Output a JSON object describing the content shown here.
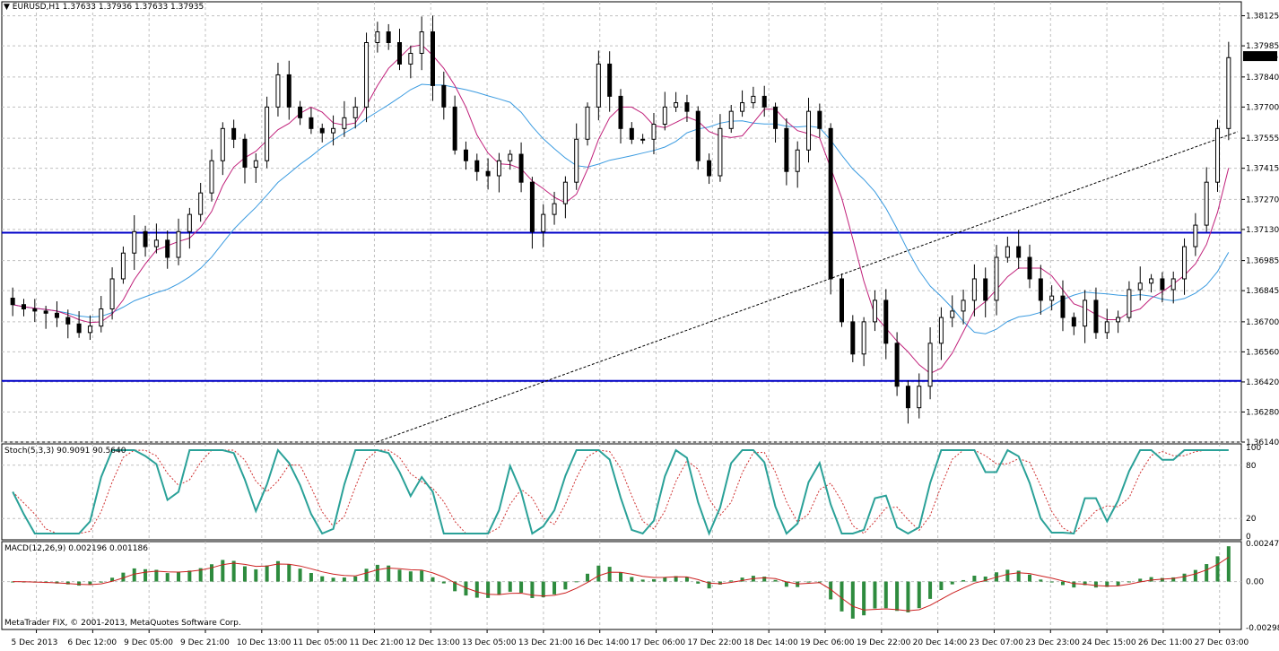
{
  "header": {
    "symbol": "EURUSD,H1",
    "ohlc": "1.37633 1.37936 1.37633 1.37935"
  },
  "copyright": "MetaTrader FIX, © 2001-2013, MetaQuotes Software Corp.",
  "colors": {
    "grid": "#c0c0c0",
    "axis": "#000000",
    "bull": "#000000",
    "bear": "#000000",
    "ma_fast": "#c0207a",
    "ma_slow": "#3b9be0",
    "hline": "#0000c8",
    "stoch_main": "#2aa198",
    "stoch_signal": "#d03030",
    "macd_hist": "#2e8b3e",
    "macd_signal": "#cc2020",
    "price_tag_bg": "#000000",
    "price_tag_fg": "#ffffff"
  },
  "chart_data": {
    "type": "candlestick",
    "price_axis": {
      "ticks": [
        "1.38125",
        "1.37985",
        "1.37840",
        "1.37700",
        "1.37555",
        "1.37415",
        "1.37270",
        "1.37130",
        "1.36985",
        "1.36845",
        "1.36700",
        "1.36560",
        "1.36420",
        "1.36280",
        "1.36140"
      ],
      "range": [
        1.3614,
        1.3819
      ],
      "current": "1.37935"
    },
    "time_axis": {
      "labels": [
        "5 Dec 2013",
        "6 Dec 12:00",
        "9 Dec 05:00",
        "9 Dec 21:00",
        "10 Dec 13:00",
        "11 Dec 05:00",
        "11 Dec 21:00",
        "12 Dec 13:00",
        "13 Dec 05:00",
        "13 Dec 21:00",
        "16 Dec 14:00",
        "17 Dec 06:00",
        "17 Dec 22:00",
        "18 Dec 14:00",
        "19 Dec 06:00",
        "19 Dec 22:00",
        "20 Dec 14:00",
        "23 Dec 07:00",
        "23 Dec 23:00",
        "24 Dec 15:00",
        "26 Dec 11:00",
        "27 Dec 03:00"
      ]
    },
    "horizontal_lines": [
      1.37115,
      1.36425
    ],
    "candles_close_path": [
      1.3678,
      1.3676,
      1.3675,
      1.3674,
      1.3672,
      1.3669,
      1.3665,
      1.3668,
      1.3676,
      1.369,
      1.3702,
      1.3712,
      1.3705,
      1.3708,
      1.37,
      1.3712,
      1.372,
      1.373,
      1.3745,
      1.376,
      1.3755,
      1.3742,
      1.3745,
      1.377,
      1.3785,
      1.377,
      1.3765,
      1.376,
      1.3758,
      1.376,
      1.3765,
      1.377,
      1.38,
      1.3805,
      1.38,
      1.379,
      1.3795,
      1.3805,
      1.378,
      1.377,
      1.375,
      1.3745,
      1.374,
      1.3738,
      1.3745,
      1.3748,
      1.3735,
      1.3712,
      1.372,
      1.3725,
      1.3735,
      1.3755,
      1.377,
      1.379,
      1.3775,
      1.376,
      1.3755,
      1.3755,
      1.3762,
      1.377,
      1.3772,
      1.3768,
      1.3745,
      1.3738,
      1.376,
      1.3768,
      1.3772,
      1.3775,
      1.377,
      1.376,
      1.374,
      1.375,
      1.3768,
      1.376,
      1.369,
      1.367,
      1.3655,
      1.367,
      1.368,
      1.366,
      1.364,
      1.363,
      1.364,
      1.366,
      1.3672,
      1.3675,
      1.368,
      1.369,
      1.368,
      1.37,
      1.3705,
      1.37,
      1.369,
      1.368,
      1.3682,
      1.3672,
      1.3668,
      1.368,
      1.3665,
      1.367,
      1.3672,
      1.3685,
      1.3688,
      1.369,
      1.3685,
      1.369,
      1.3705,
      1.3715,
      1.3735,
      1.376,
      1.3793
    ],
    "stochastic": {
      "label": "Stoch(5,3,3) 90.9091 90.5640",
      "levels": [
        "100",
        "80",
        "20",
        "0"
      ],
      "range": [
        0,
        100
      ]
    },
    "macd": {
      "label": "MACD(12,26,9) 0.002196 0.001186",
      "ticks": [
        "0.002472",
        "0.00",
        "-0.002987"
      ],
      "range": [
        -0.002987,
        0.002472
      ]
    }
  }
}
